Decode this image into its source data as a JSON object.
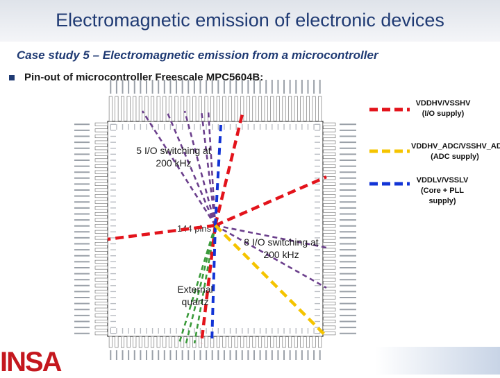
{
  "slide": {
    "title": "Electromagnetic emission of electronic devices",
    "subtitle": "Case study 5 – Electromagnetic emission from a microcontroller",
    "bullet": "Pin-out of microcontroller Freescale MPC5604B:"
  },
  "chip": {
    "center_label": "144 pins"
  },
  "annotations": {
    "io5": "5 I/O switching at 200 kHz",
    "io8": "8 I/O switching at 200 kHz",
    "quartz": "External quartz"
  },
  "legend": [
    {
      "text": "VDDHV/VSSHV (I/O supply)",
      "color": "#e3131b",
      "dash": "dashed"
    },
    {
      "text": "VDDHV_ADC/VSSHV_ADC (ADC supply)",
      "color": "#f5c400",
      "dash": "dashed"
    },
    {
      "text": "VDDLV/VSSLV (Core + PLL supply)",
      "color": "#1234d6",
      "dash": "dashed"
    }
  ],
  "logo": {
    "text": "INSA"
  },
  "colors": {
    "io_supply": "#e3131b",
    "adc_supply": "#f5c400",
    "core_supply": "#1234d6",
    "io_switching": "#6b3f8c",
    "quartz": "#3a9a3a"
  }
}
